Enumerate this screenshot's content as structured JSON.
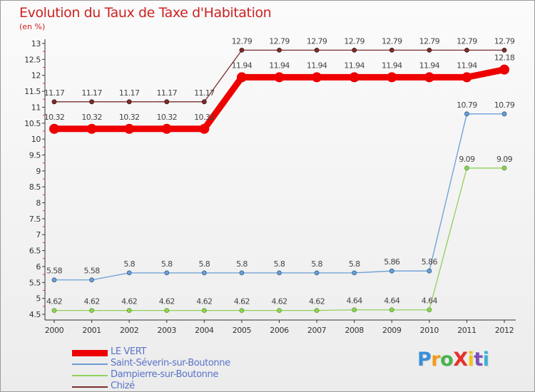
{
  "title": "Evolution du Taux de Taxe d'Habitation",
  "subtitle": "(en %)",
  "logo": {
    "text": "ProXiti",
    "letter_colors": [
      "#3a8fd6",
      "#f29b1c",
      "#49b34a",
      "#e8302a",
      "#f2c314",
      "#7a4fb8",
      "#3ab0d6"
    ]
  },
  "chart_data": {
    "type": "line",
    "x": [
      "2000",
      "2001",
      "2002",
      "2003",
      "2004",
      "2005",
      "2006",
      "2007",
      "2008",
      "2009",
      "2010",
      "2011",
      "2012"
    ],
    "ylim": [
      4.5,
      13
    ],
    "yticks": [
      4.5,
      5,
      5.5,
      6,
      6.5,
      7,
      7.5,
      8,
      8.5,
      9,
      9.5,
      10,
      10.5,
      11,
      11.5,
      12,
      12.5,
      13
    ],
    "ytick_labels": [
      "4.5",
      "5",
      "5.5",
      "6",
      "6.5",
      "7",
      "7.5",
      "8",
      "8.5",
      "9",
      "9.5",
      "10",
      "10.5",
      "11",
      "11.5",
      "12",
      "12.5",
      "13"
    ],
    "grid": false,
    "legend_position": "bottom-left",
    "series": [
      {
        "name": "LE VERT",
        "color": "#ee0000",
        "values": [
          10.32,
          10.32,
          10.32,
          10.32,
          10.32,
          11.94,
          11.94,
          11.94,
          11.94,
          11.94,
          11.94,
          11.94,
          12.18
        ],
        "labels": [
          "10.32",
          "10.32",
          "10.32",
          "10.32",
          "10.32",
          "11.94",
          "11.94",
          "11.94",
          "11.94",
          "11.94",
          "11.94",
          "11.94",
          "12.18"
        ]
      },
      {
        "name": "Saint-Séverin-sur-Boutonne",
        "color": "#6a9fd4",
        "values": [
          5.58,
          5.58,
          5.8,
          5.8,
          5.8,
          5.8,
          5.8,
          5.8,
          5.8,
          5.86,
          5.86,
          10.79,
          10.79
        ],
        "labels": [
          "5.58",
          "5.58",
          "5.8",
          "5.8",
          "5.8",
          "5.8",
          "5.8",
          "5.8",
          "5.8",
          "5.86",
          "5.86",
          "10.79",
          "10.79"
        ]
      },
      {
        "name": "Dampierre-sur-Boutonne",
        "color": "#8fd15a",
        "values": [
          4.62,
          4.62,
          4.62,
          4.62,
          4.62,
          4.62,
          4.62,
          4.62,
          4.64,
          4.64,
          4.64,
          9.09,
          9.09
        ],
        "labels": [
          "4.62",
          "4.62",
          "4.62",
          "4.62",
          "4.62",
          "4.62",
          "4.62",
          "4.62",
          "4.64",
          "4.64",
          "4.64",
          "9.09",
          "9.09"
        ]
      },
      {
        "name": "Chizé",
        "color": "#7a2e2e",
        "values": [
          11.17,
          11.17,
          11.17,
          11.17,
          11.17,
          12.79,
          12.79,
          12.79,
          12.79,
          12.79,
          12.79,
          12.79,
          12.79
        ],
        "labels": [
          "11.17",
          "11.17",
          "11.17",
          "11.17",
          "11.17",
          "12.79",
          "12.79",
          "12.79",
          "12.79",
          "12.79",
          "12.79",
          "12.79",
          "12.79"
        ]
      }
    ]
  }
}
